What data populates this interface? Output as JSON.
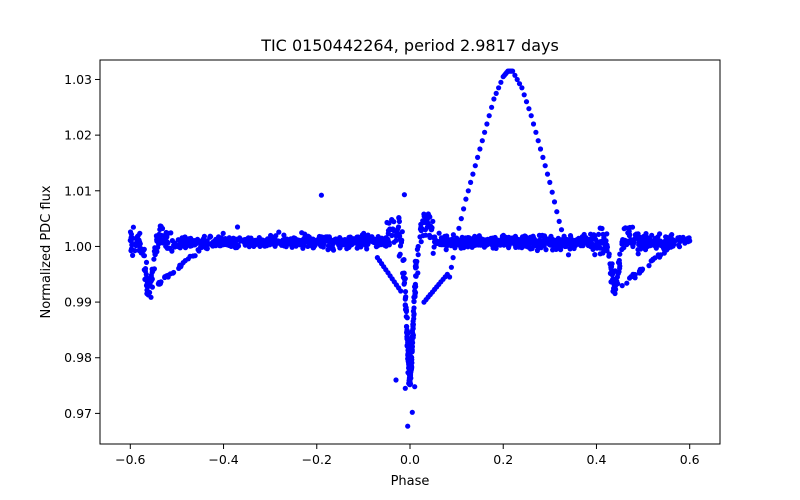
{
  "chart_data": {
    "type": "scatter",
    "title": "TIC 0150442264, period 2.9817 days",
    "xlabel": "Phase",
    "ylabel": "Normalized PDC flux",
    "xlim": [
      -0.665,
      0.665
    ],
    "ylim": [
      0.9645,
      1.0335
    ],
    "x_ticks": [
      -0.6,
      -0.4,
      -0.2,
      0.0,
      0.2,
      0.4,
      0.6
    ],
    "x_tick_labels": [
      "−0.6",
      "−0.4",
      "−0.2",
      "0.0",
      "0.2",
      "0.4",
      "0.6"
    ],
    "y_ticks": [
      0.97,
      0.98,
      0.99,
      1.0,
      1.01,
      1.02,
      1.03
    ],
    "y_tick_labels": [
      "0.97",
      "0.98",
      "0.99",
      "1.00",
      "1.01",
      "1.02",
      "1.03"
    ],
    "grid": false,
    "marker_color": "#0000ff",
    "x_range_of_data": [
      -0.6,
      0.6
    ],
    "baseline_flux": 1.0008,
    "primary_eclipse": {
      "phase": 0.0,
      "min_flux": 0.9677
    },
    "secondary_eclipses": [
      {
        "phase": -0.56,
        "min_flux": 0.991
      },
      {
        "phase": 0.44,
        "min_flux": 0.991
      }
    ],
    "flare_arc": [
      [
        0.085,
        0.9945
      ],
      [
        0.1,
        1.0015
      ],
      [
        0.12,
        1.0085
      ],
      [
        0.14,
        1.0145
      ],
      [
        0.16,
        1.0205
      ],
      [
        0.18,
        1.0265
      ],
      [
        0.2,
        1.0305
      ],
      [
        0.21,
        1.0315
      ],
      [
        0.22,
        1.0315
      ],
      [
        0.24,
        1.0285
      ],
      [
        0.26,
        1.0235
      ],
      [
        0.28,
        1.0175
      ],
      [
        0.3,
        1.0115
      ],
      [
        0.32,
        1.0045
      ],
      [
        0.34,
        0.9985
      ]
    ],
    "outliers": [
      [
        -0.19,
        1.0092
      ],
      [
        -0.37,
        1.0035
      ],
      [
        -0.005,
        0.9677
      ],
      [
        0.005,
        0.9702
      ],
      [
        -0.01,
        0.9745
      ],
      [
        0.01,
        0.9748
      ],
      [
        -0.03,
        0.976
      ],
      [
        -0.012,
        1.0093
      ]
    ]
  }
}
